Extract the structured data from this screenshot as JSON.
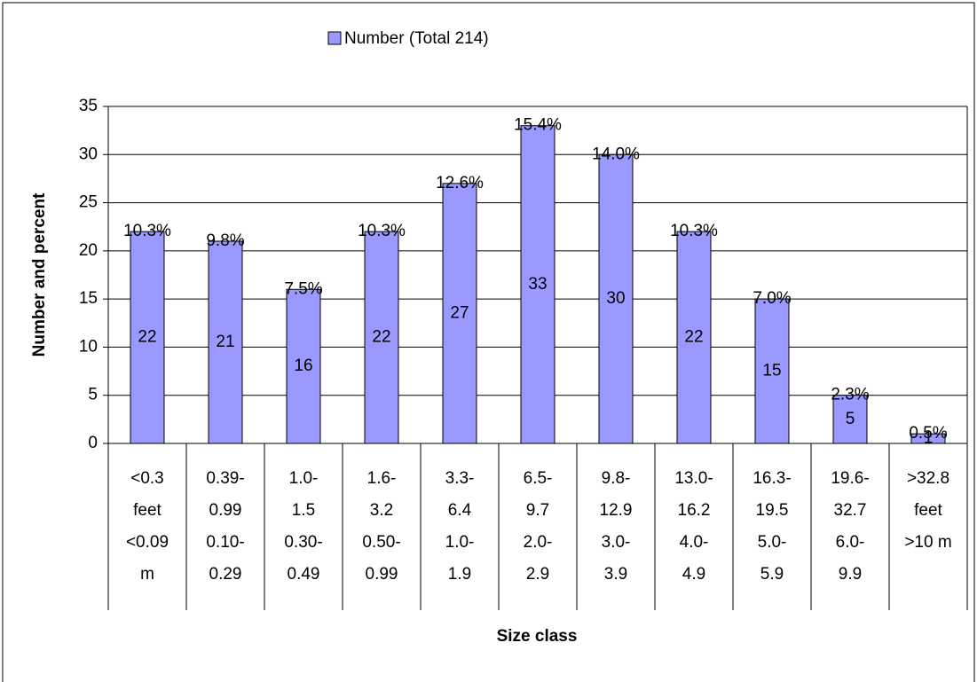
{
  "chart_data": {
    "type": "bar",
    "legend": "Number (Total 214)",
    "y_label": "Number and percent",
    "x_label": "Size class",
    "color": "#9999ff",
    "grid": true,
    "categories": [
      {
        "feet": [
          "<0.3",
          "feet"
        ],
        "metric": [
          "<0.09",
          "m"
        ]
      },
      {
        "feet": [
          "0.39-",
          "0.99"
        ],
        "metric": [
          "0.10-",
          "0.29"
        ]
      },
      {
        "feet": [
          "1.0-",
          "1.5"
        ],
        "metric": [
          "0.30-",
          "0.49"
        ]
      },
      {
        "feet": [
          "1.6-",
          "3.2"
        ],
        "metric": [
          "0.50-",
          "0.99"
        ]
      },
      {
        "feet": [
          "3.3-",
          "6.4"
        ],
        "metric": [
          "1.0-",
          "1.9"
        ]
      },
      {
        "feet": [
          "6.5-",
          "9.7"
        ],
        "metric": [
          "2.0-",
          "2.9"
        ]
      },
      {
        "feet": [
          "9.8-",
          "12.9"
        ],
        "metric": [
          "3.0-",
          "3.9"
        ]
      },
      {
        "feet": [
          "13.0-",
          "16.2"
        ],
        "metric": [
          "4.0-",
          "4.9"
        ]
      },
      {
        "feet": [
          "16.3-",
          "19.5"
        ],
        "metric": [
          "5.0-",
          "5.9"
        ]
      },
      {
        "feet": [
          "19.6-",
          "32.7"
        ],
        "metric": [
          "6.0-",
          "9.9"
        ]
      },
      {
        "feet": [
          ">32.8",
          "feet"
        ],
        "metric": [
          ">10 m"
        ]
      }
    ],
    "values": [
      22,
      21,
      16,
      22,
      27,
      33,
      30,
      22,
      15,
      5,
      1
    ],
    "percent": {
      "values": [
        10.3,
        9.8,
        7.5,
        10.3,
        12.6,
        15.4,
        14.0,
        10.3,
        7.0,
        2.3,
        0.5
      ],
      "value_labels": [
        "10.3%",
        "9.8%",
        "7.5%",
        "10.3%",
        "12.6%",
        "15.4%",
        "14.0%",
        "10.3%",
        "7.0%",
        "2.3%",
        "0.5%"
      ]
    },
    "ylim": [
      0,
      35
    ],
    "yticks": [
      0,
      5,
      10,
      15,
      20,
      25,
      30,
      35
    ]
  }
}
